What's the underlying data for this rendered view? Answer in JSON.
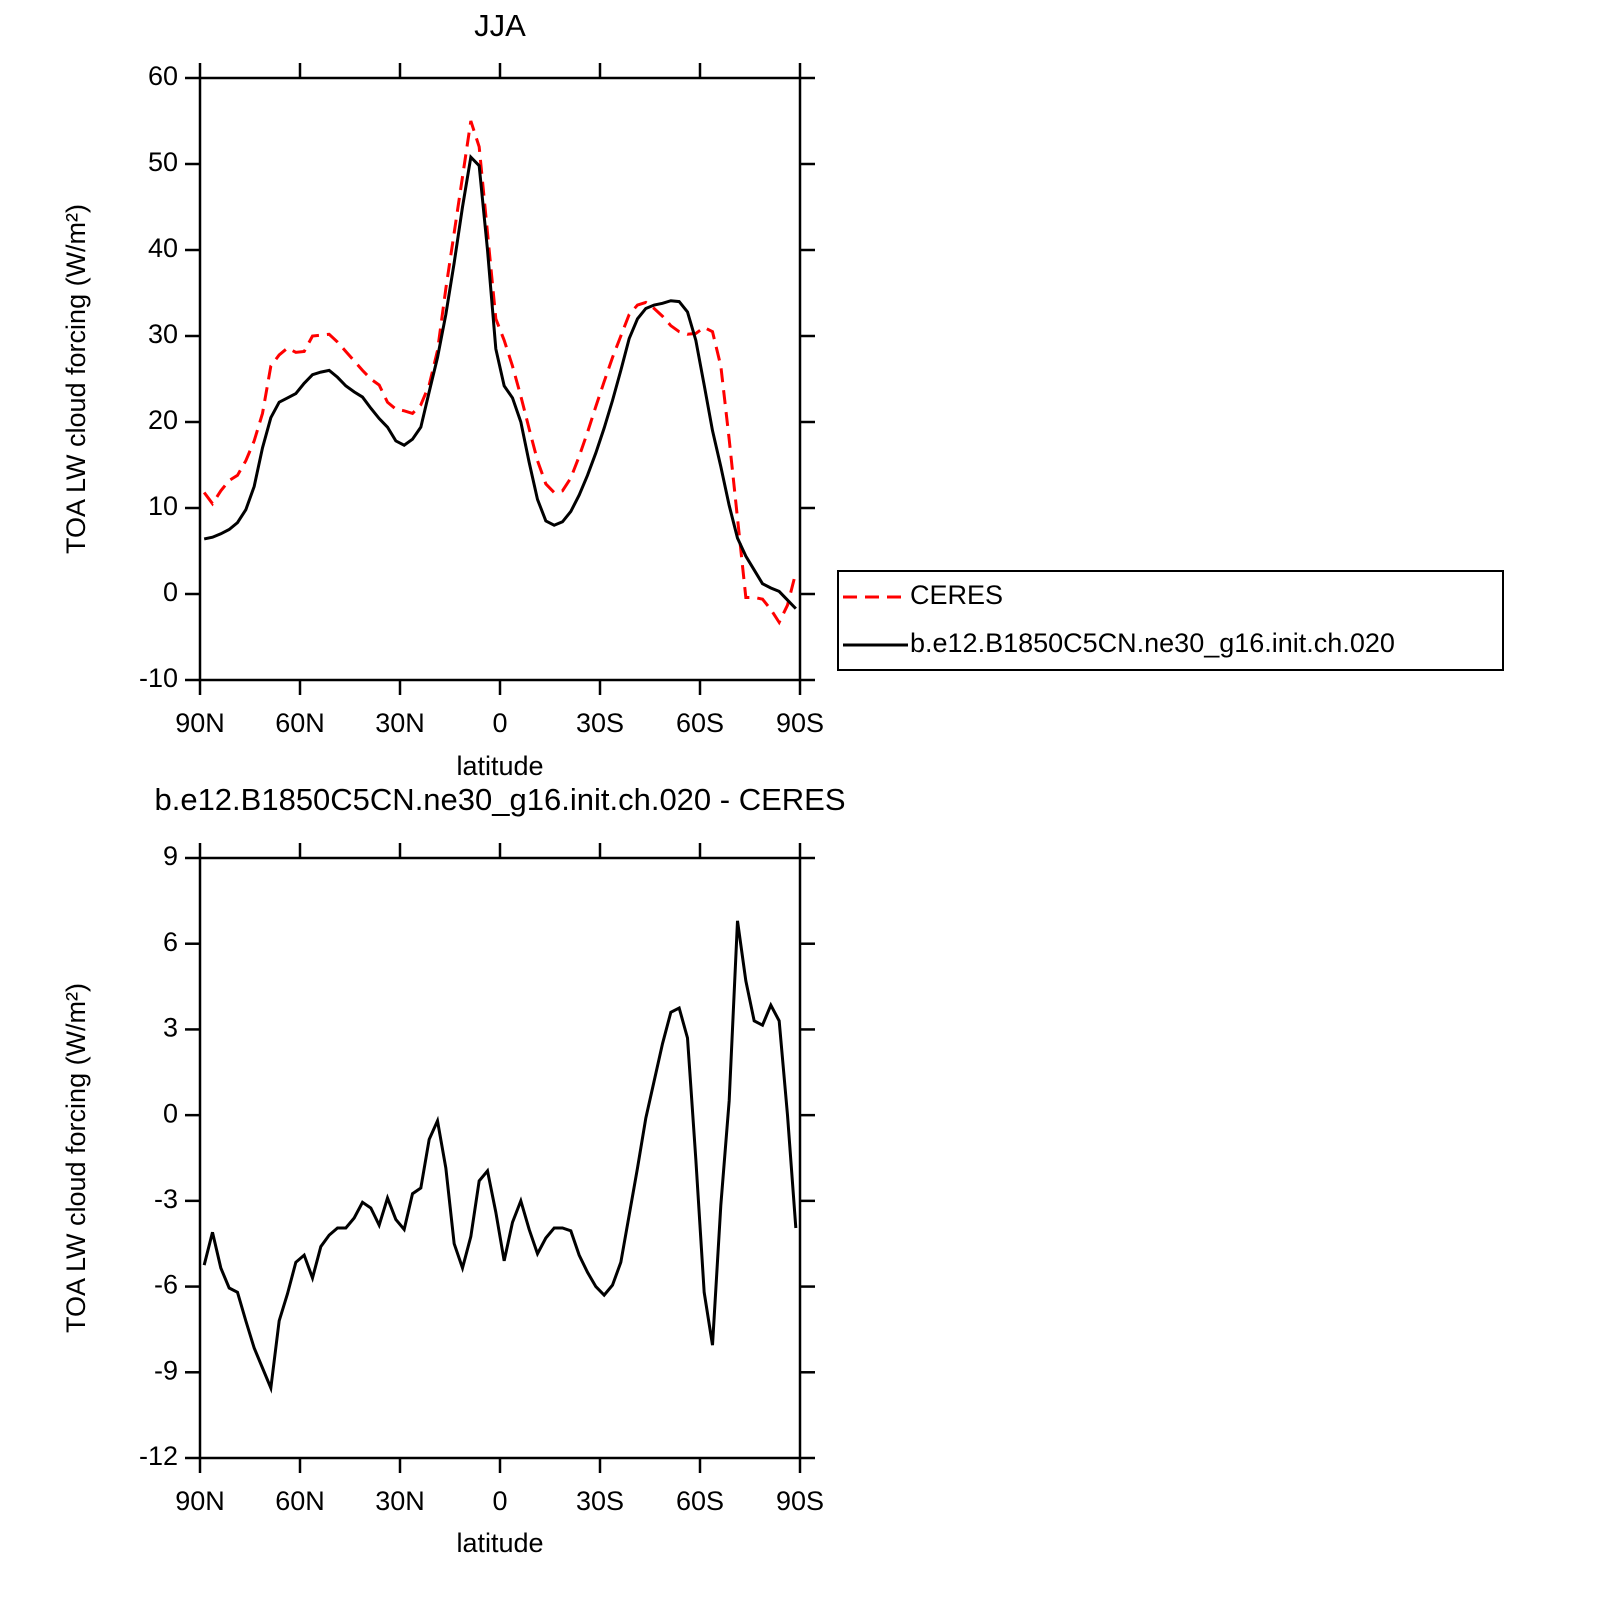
{
  "chart_data": [
    {
      "type": "line",
      "title": "JJA",
      "xlabel": "latitude",
      "ylabel": "TOA LW cloud forcing (W/m²)",
      "x": [
        88.75,
        86.25,
        83.75,
        81.25,
        78.75,
        76.25,
        73.75,
        71.25,
        68.75,
        66.25,
        63.75,
        61.25,
        58.75,
        56.25,
        53.75,
        51.25,
        48.75,
        46.25,
        43.75,
        41.25,
        38.75,
        36.25,
        33.75,
        31.25,
        28.75,
        26.25,
        23.75,
        21.25,
        18.75,
        16.25,
        13.75,
        11.25,
        8.75,
        6.25,
        3.75,
        1.25,
        -1.25,
        -3.75,
        -6.25,
        -8.75,
        -11.25,
        -13.75,
        -16.25,
        -18.75,
        -21.25,
        -23.75,
        -26.25,
        -28.75,
        -31.25,
        -33.75,
        -36.25,
        -38.75,
        -41.25,
        -43.75,
        -46.25,
        -48.75,
        -51.25,
        -53.75,
        -56.25,
        -58.75,
        -61.25,
        -63.75,
        -66.25,
        -68.75,
        -71.25,
        -73.75,
        -76.25,
        -78.75,
        -81.25,
        -83.75,
        -86.25,
        -88.75
      ],
      "series": [
        {
          "name": "CERES",
          "color": "#ff0000",
          "linestyle": "dashed",
          "values": [
            11.8,
            10.5,
            12,
            13.2,
            13.8,
            15.5,
            17.8,
            21,
            26.5,
            27.8,
            28.6,
            28.1,
            28.2,
            30,
            30.1,
            30.2,
            29.3,
            28.2,
            27.1,
            26,
            25,
            24.3,
            22.3,
            21.5,
            21.3,
            21,
            22,
            24.3,
            28.3,
            35.5,
            42,
            48.5,
            55,
            52,
            42,
            32,
            29.5,
            26.5,
            23,
            19.2,
            15.5,
            12.8,
            11.8,
            12,
            13.5,
            16,
            18.8,
            21.8,
            24.7,
            27.5,
            30,
            32.5,
            33.6,
            33.9,
            33.2,
            32.3,
            31.2,
            30.5,
            30.2,
            30.3,
            31,
            30.5,
            26.5,
            18,
            8.8,
            -0.4,
            -0.4,
            -0.6,
            -1.8,
            -3.3,
            -1.3,
            2.5
          ]
        },
        {
          "name": "b.e12.B1850C5CN.ne30_g16.init.ch.020",
          "color": "#000000",
          "linestyle": "solid",
          "values": [
            6.4,
            6.6,
            7,
            7.5,
            8.3,
            9.8,
            12.5,
            17,
            20.5,
            22.3,
            22.8,
            23.3,
            24.5,
            25.5,
            25.8,
            26,
            25.2,
            24.2,
            23.5,
            22.9,
            21.6,
            20.4,
            19.4,
            17.8,
            17.3,
            18,
            19.4,
            23.5,
            27.5,
            32.5,
            38.5,
            45,
            50.8,
            49.8,
            40,
            28.5,
            24.2,
            22.8,
            20,
            15.3,
            11,
            8.5,
            8,
            8.4,
            9.6,
            11.5,
            13.8,
            16.4,
            19.3,
            22.5,
            26,
            29.7,
            32,
            33.2,
            33.6,
            33.8,
            34.1,
            34,
            32.8,
            29.5,
            24.3,
            19,
            14.8,
            10.3,
            6.5,
            4.4,
            2.8,
            1.2,
            0.7,
            0.3,
            -0.7,
            -1.7
          ]
        }
      ],
      "xlim": [
        90,
        -90
      ],
      "xticks": [
        {
          "value": 90,
          "label": "90N"
        },
        {
          "value": 60,
          "label": "60N"
        },
        {
          "value": 30,
          "label": "30N"
        },
        0,
        {
          "value": -30,
          "label": "30S"
        },
        {
          "value": -60,
          "label": "60S"
        },
        {
          "value": -90,
          "label": "90S"
        }
      ],
      "ylim": [
        -10,
        60
      ],
      "yticks": [
        -10,
        0,
        10,
        20,
        30,
        40,
        50,
        60
      ],
      "legend": "right"
    },
    {
      "type": "line",
      "title": "b.e12.B1850C5CN.ne30_g16.init.ch.020 - CERES",
      "xlabel": "latitude",
      "ylabel": "TOA LW cloud forcing (W/m²)",
      "x": [
        88.75,
        86.25,
        83.75,
        81.25,
        78.75,
        76.25,
        73.75,
        71.25,
        68.75,
        66.25,
        63.75,
        61.25,
        58.75,
        56.25,
        53.75,
        51.25,
        48.75,
        46.25,
        43.75,
        41.25,
        38.75,
        36.25,
        33.75,
        31.25,
        28.75,
        26.25,
        23.75,
        21.25,
        18.75,
        16.25,
        13.75,
        11.25,
        8.75,
        6.25,
        3.75,
        1.25,
        -1.25,
        -3.75,
        -6.25,
        -8.75,
        -11.25,
        -13.75,
        -16.25,
        -18.75,
        -21.25,
        -23.75,
        -26.25,
        -28.75,
        -31.25,
        -33.75,
        -36.25,
        -38.75,
        -41.25,
        -43.75,
        -46.25,
        -48.75,
        -51.25,
        -53.75,
        -56.25,
        -58.75,
        -61.25,
        -63.75,
        -66.25,
        -68.75,
        -71.25,
        -73.75,
        -76.25,
        -78.75,
        -81.25,
        -83.75,
        -86.25,
        -88.75
      ],
      "color": "#000000",
      "values": [
        -5.25,
        -4.1,
        -5.35,
        -6.05,
        -6.2,
        -7.2,
        -8.15,
        -8.85,
        -9.55,
        -7.2,
        -6.25,
        -5.15,
        -4.9,
        -5.7,
        -4.6,
        -4.2,
        -3.95,
        -3.95,
        -3.6,
        -3.05,
        -3.25,
        -3.85,
        -2.9,
        -3.65,
        -4,
        -2.75,
        -2.55,
        -0.85,
        -0.2,
        -1.85,
        -4.5,
        -5.35,
        -4.25,
        -2.3,
        -1.95,
        -3.4,
        -5.1,
        -3.75,
        -3,
        -4,
        -4.85,
        -4.3,
        -3.95,
        -3.95,
        -4.05,
        -4.9,
        -5.5,
        -6,
        -6.3,
        -5.95,
        -5.15,
        -3.5,
        -1.85,
        -0.1,
        1.2,
        2.5,
        3.6,
        3.75,
        2.7,
        -1.55,
        -6.2,
        -8.05,
        -3.15,
        0.5,
        6.8,
        4.7,
        3.3,
        3.15,
        3.85,
        3.3,
        0,
        -3.95
      ],
      "xlim": [
        90,
        -90
      ],
      "xticks": [
        {
          "value": 90,
          "label": "90N"
        },
        {
          "value": 60,
          "label": "60N"
        },
        {
          "value": 30,
          "label": "30N"
        },
        0,
        {
          "value": -30,
          "label": "30S"
        },
        {
          "value": -60,
          "label": "60S"
        },
        {
          "value": -90,
          "label": "90S"
        }
      ],
      "ylim": [
        -12,
        9
      ],
      "yticks": [
        -12,
        -9,
        -6,
        -3,
        0,
        3,
        6,
        9
      ]
    }
  ]
}
